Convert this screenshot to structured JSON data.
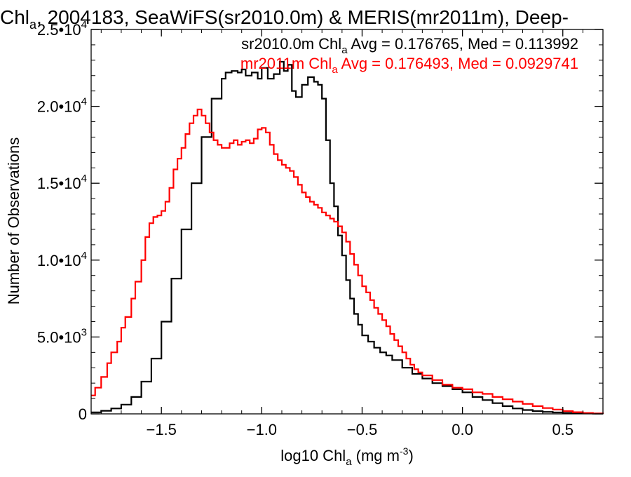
{
  "chart_data": {
    "type": "line",
    "title": {
      "main": "Chl",
      "main_sub": "a",
      "rest": ", 2004183, SeaWiFS(sr2010.0m) & MERIS(mr2011m), Deep-"
    },
    "xlabel": {
      "a": "log10 Chl",
      "sub": "a",
      "b": " (mg m",
      "sup": "-3",
      "c": ")"
    },
    "ylabel": "Number of Observations",
    "xlim": [
      -1.85,
      0.7
    ],
    "ylim": [
      0,
      25000
    ],
    "xticks": [
      {
        "value": -1.5,
        "label": "−1.5"
      },
      {
        "value": -1.0,
        "label": "−1.0"
      },
      {
        "value": -0.5,
        "label": "−0.5"
      },
      {
        "value": 0.0,
        "label": "0.0"
      },
      {
        "value": 0.5,
        "label": "0.5"
      }
    ],
    "yticks": [
      {
        "value": 0,
        "mantissa": "0",
        "exp": ""
      },
      {
        "value": 5000,
        "mantissa": "5.0•10",
        "exp": "3"
      },
      {
        "value": 10000,
        "mantissa": "1.0•10",
        "exp": "4"
      },
      {
        "value": 15000,
        "mantissa": "1.5•10",
        "exp": "4"
      },
      {
        "value": 20000,
        "mantissa": "2.0•10",
        "exp": "4"
      },
      {
        "value": 25000,
        "mantissa": "2.5•10",
        "exp": "4"
      }
    ],
    "grid": false,
    "legend_placement": "top-right",
    "series": [
      {
        "name": "sr2010.0m",
        "color": "#000000",
        "legend": {
          "a": "sr2010.0m Chl",
          "sub": "a",
          "b": " Avg = 0.176765, Med = 0.113992"
        },
        "step": true,
        "x": [
          -1.85,
          -1.8,
          -1.75,
          -1.7,
          -1.65,
          -1.6,
          -1.55,
          -1.5,
          -1.45,
          -1.4,
          -1.35,
          -1.3,
          -1.25,
          -1.2,
          -1.18,
          -1.15,
          -1.12,
          -1.1,
          -1.08,
          -1.05,
          -1.02,
          -1.0,
          -0.97,
          -0.94,
          -0.91,
          -0.89,
          -0.87,
          -0.85,
          -0.83,
          -0.8,
          -0.77,
          -0.74,
          -0.72,
          -0.7,
          -0.68,
          -0.66,
          -0.64,
          -0.62,
          -0.6,
          -0.58,
          -0.56,
          -0.54,
          -0.52,
          -0.5,
          -0.47,
          -0.44,
          -0.41,
          -0.38,
          -0.35,
          -0.3,
          -0.25,
          -0.2,
          -0.15,
          -0.1,
          -0.05,
          0.0,
          0.05,
          0.1,
          0.15,
          0.2,
          0.25,
          0.3,
          0.35,
          0.4,
          0.45,
          0.5,
          0.55,
          0.6,
          0.65,
          0.7
        ],
        "y": [
          100,
          200,
          350,
          600,
          1100,
          2100,
          3600,
          6000,
          8800,
          12000,
          15000,
          18000,
          20500,
          21800,
          22200,
          22300,
          22200,
          22400,
          22000,
          22200,
          21800,
          22500,
          21800,
          22100,
          22900,
          22300,
          22700,
          21000,
          20600,
          21400,
          21900,
          21600,
          21400,
          20500,
          17800,
          15000,
          13500,
          11600,
          10300,
          8700,
          7500,
          6500,
          5800,
          5100,
          4700,
          4300,
          4000,
          3800,
          3500,
          3000,
          2600,
          2300,
          2000,
          1800,
          1600,
          1400,
          1100,
          900,
          700,
          500,
          350,
          250,
          180,
          130,
          90,
          60,
          40,
          30,
          20,
          10
        ]
      },
      {
        "name": "mr2011m",
        "color": "#ff0000",
        "legend": {
          "a": "mr2011m Chl",
          "sub": "a",
          "b": " Avg = 0.176493, Med = 0.0929741"
        },
        "step": true,
        "x": [
          -1.85,
          -1.83,
          -1.8,
          -1.77,
          -1.75,
          -1.72,
          -1.7,
          -1.68,
          -1.65,
          -1.63,
          -1.6,
          -1.58,
          -1.56,
          -1.54,
          -1.52,
          -1.5,
          -1.48,
          -1.46,
          -1.44,
          -1.42,
          -1.4,
          -1.38,
          -1.36,
          -1.34,
          -1.32,
          -1.3,
          -1.28,
          -1.26,
          -1.24,
          -1.22,
          -1.2,
          -1.18,
          -1.16,
          -1.14,
          -1.12,
          -1.1,
          -1.08,
          -1.06,
          -1.04,
          -1.02,
          -1.0,
          -0.98,
          -0.96,
          -0.94,
          -0.92,
          -0.9,
          -0.88,
          -0.86,
          -0.84,
          -0.82,
          -0.8,
          -0.78,
          -0.76,
          -0.74,
          -0.72,
          -0.7,
          -0.68,
          -0.66,
          -0.64,
          -0.62,
          -0.6,
          -0.58,
          -0.56,
          -0.54,
          -0.52,
          -0.5,
          -0.48,
          -0.46,
          -0.44,
          -0.42,
          -0.4,
          -0.38,
          -0.36,
          -0.34,
          -0.32,
          -0.3,
          -0.28,
          -0.26,
          -0.24,
          -0.22,
          -0.2,
          -0.15,
          -0.1,
          -0.05,
          0.0,
          0.05,
          0.1,
          0.15,
          0.2,
          0.25,
          0.3,
          0.35,
          0.4,
          0.45,
          0.5,
          0.55,
          0.6,
          0.65,
          0.7
        ],
        "y": [
          1200,
          1700,
          2400,
          3300,
          4000,
          4700,
          5600,
          6300,
          7500,
          8600,
          10000,
          11500,
          12400,
          12800,
          12900,
          13200,
          13800,
          14700,
          15900,
          16600,
          17300,
          18200,
          18900,
          19400,
          19800,
          19400,
          18900,
          18300,
          17800,
          17500,
          17300,
          17300,
          17600,
          17800,
          17500,
          17700,
          17800,
          17600,
          17900,
          18500,
          18600,
          18300,
          17500,
          16900,
          16500,
          16200,
          16000,
          15800,
          15400,
          14900,
          14400,
          14100,
          13800,
          13600,
          13400,
          13100,
          12900,
          12700,
          12500,
          12200,
          11800,
          11200,
          10400,
          9700,
          9000,
          8300,
          7900,
          7400,
          6900,
          6500,
          6100,
          5700,
          5200,
          4800,
          4400,
          4000,
          3600,
          3200,
          2900,
          2700,
          2500,
          2200,
          1900,
          1700,
          1600,
          1400,
          1300,
          1100,
          950,
          800,
          650,
          500,
          380,
          280,
          180,
          110,
          60,
          30,
          10
        ]
      }
    ]
  }
}
